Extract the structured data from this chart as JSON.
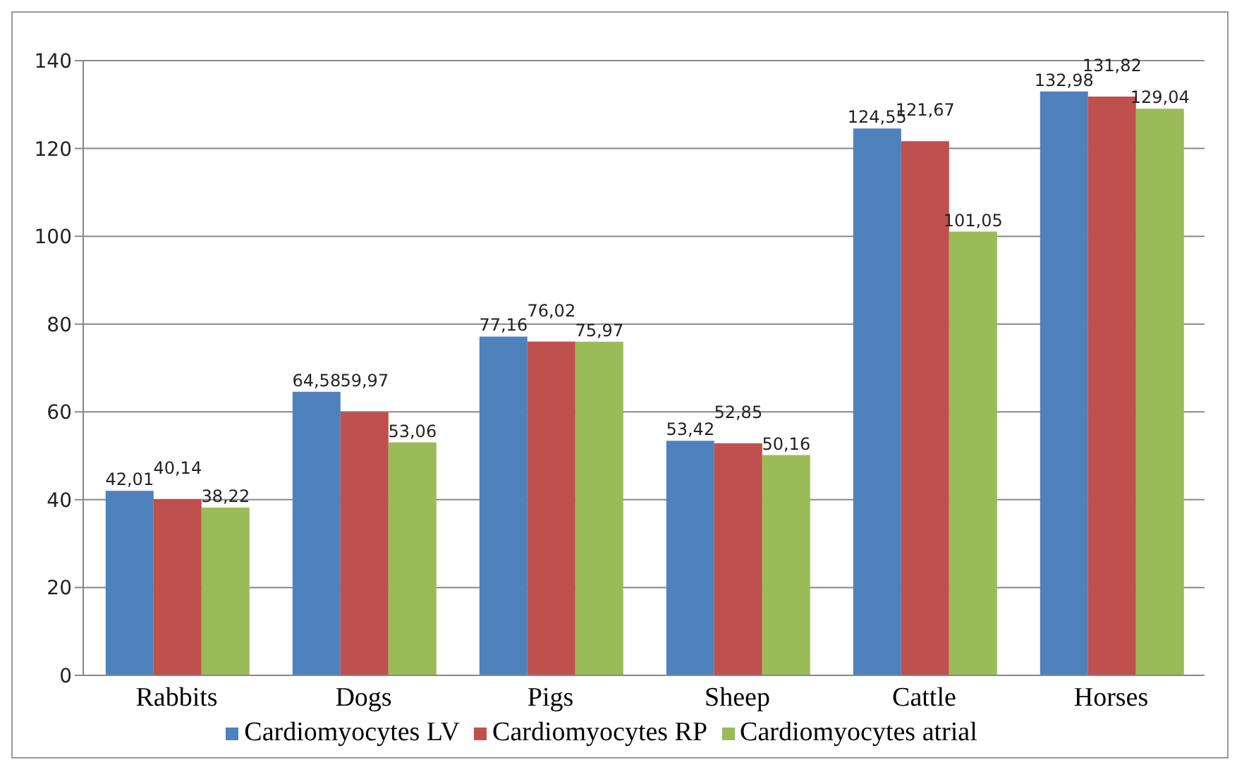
{
  "chart_data": {
    "type": "bar",
    "categories": [
      "Rabbits",
      "Dogs",
      "Pigs",
      "Sheep",
      "Cattle",
      "Horses"
    ],
    "series": [
      {
        "name": "Cardiomyocytes LV",
        "color": "#4f81bd",
        "values": [
          42.01,
          64.58,
          77.16,
          53.42,
          124.55,
          132.98
        ],
        "value_labels": [
          "42,01",
          "64,58",
          "77,16",
          "53,42",
          "124,55",
          "132,98"
        ]
      },
      {
        "name": "Cardiomyocytes RP",
        "color": "#c0504d",
        "values": [
          40.14,
          59.97,
          76.02,
          52.85,
          121.67,
          131.82
        ],
        "value_labels": [
          "40,14",
          "59,97",
          "76,02",
          "52,85",
          "121,67",
          "131,82"
        ]
      },
      {
        "name": "Cardiomyocytes atrial",
        "color": "#9bbb59",
        "values": [
          38.22,
          53.06,
          75.97,
          50.16,
          101.05,
          129.04
        ],
        "value_labels": [
          "38,22",
          "53,06",
          "75,97",
          "50,16",
          "101,05",
          "129,04"
        ]
      }
    ],
    "ylim": [
      0,
      140
    ],
    "yticks": [
      0,
      20,
      40,
      60,
      80,
      100,
      120,
      140
    ],
    "grid": "y",
    "legend": "bottom"
  }
}
